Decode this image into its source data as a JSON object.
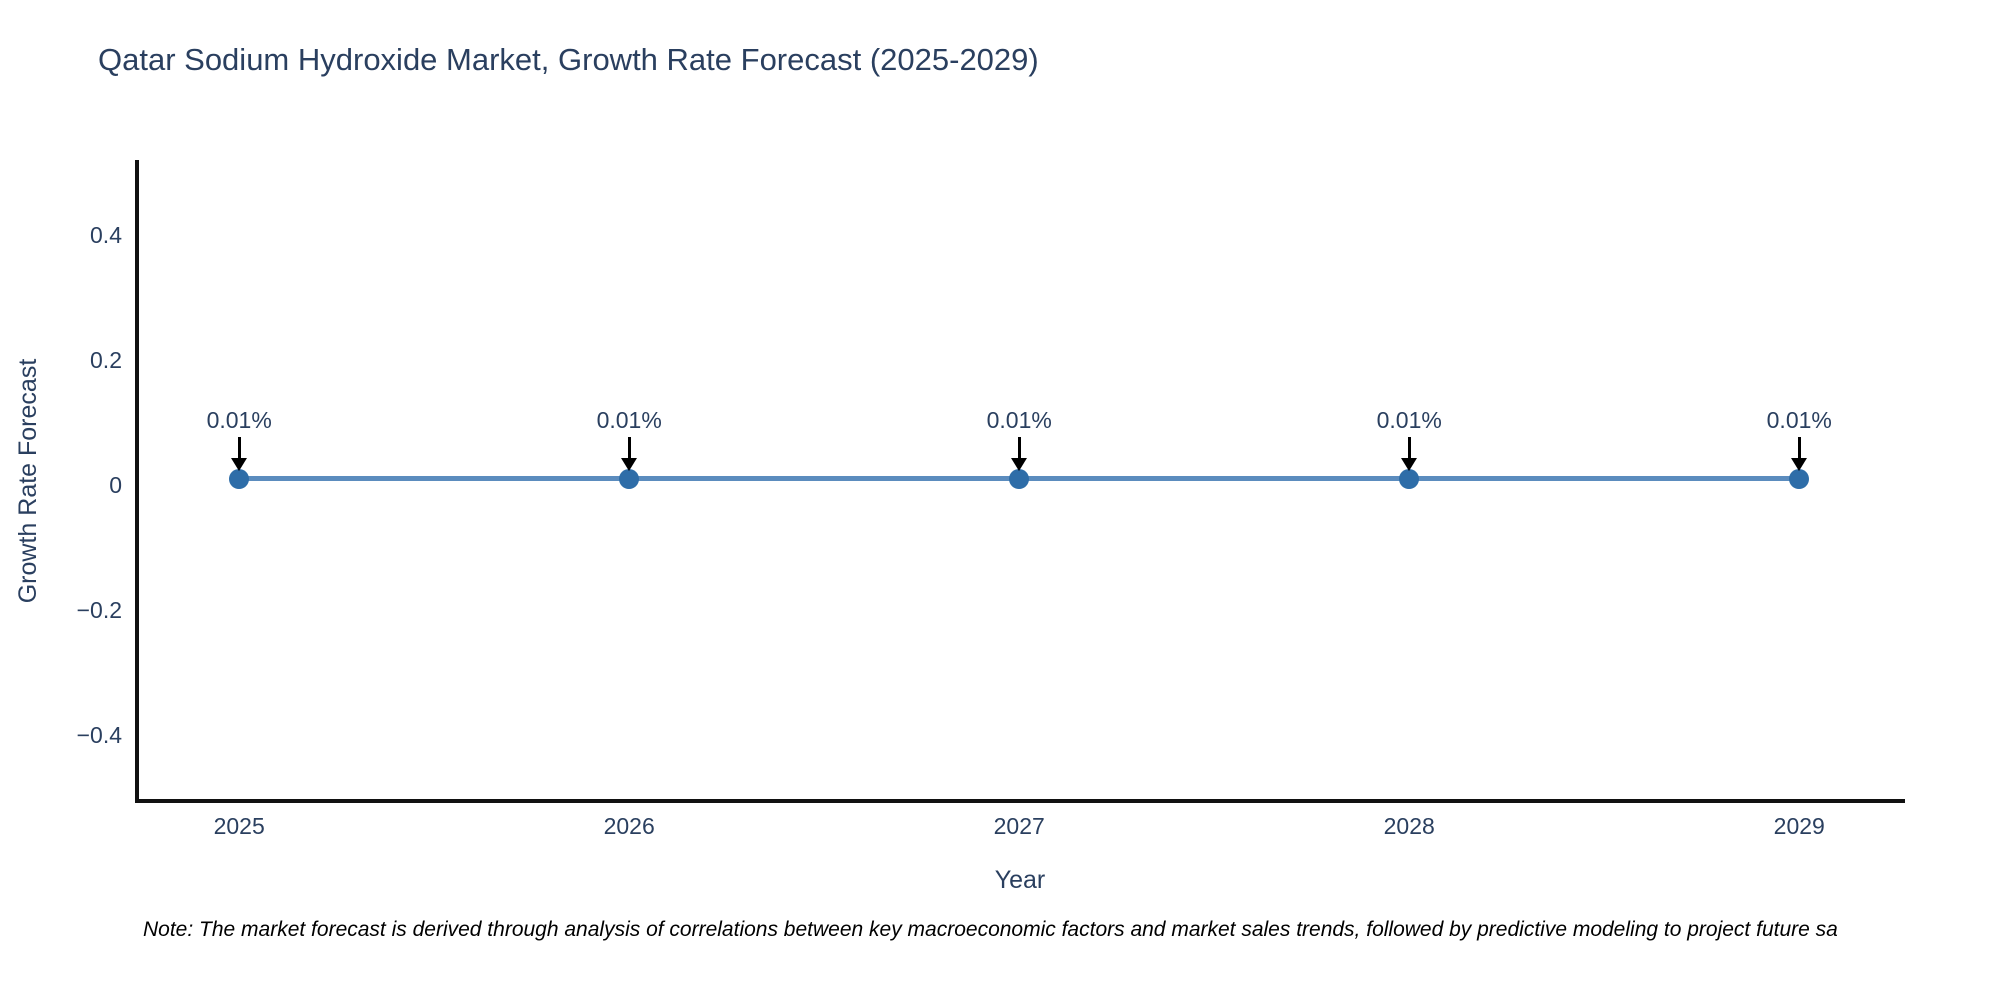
{
  "header": {
    "title": "Qatar Sodium Hydroxide Market, Growth Rate Forecast (2025-2029)"
  },
  "chart_data": {
    "type": "line",
    "title": "Qatar Sodium Hydroxide Market, Growth Rate Forecast (2025-2029)",
    "xlabel": "Year",
    "ylabel": "Growth Rate Forecast",
    "x": [
      2025,
      2026,
      2027,
      2028,
      2029
    ],
    "series": [
      {
        "name": "Growth Rate Forecast",
        "values": [
          0.01,
          0.01,
          0.01,
          0.01,
          0.01
        ]
      }
    ],
    "point_labels": [
      "0.01%",
      "0.01%",
      "0.01%",
      "0.01%",
      "0.01%"
    ],
    "xticks": [
      "2025",
      "2026",
      "2027",
      "2028",
      "2029"
    ],
    "ytick_values": [
      0.4,
      0.2,
      0,
      -0.2,
      -0.4
    ],
    "ytick_labels": [
      "0.4",
      "0.2",
      "0",
      "−0.2",
      "−0.4"
    ],
    "xlim": [
      2024.738,
      2029.266
    ],
    "ylim": [
      -0.506,
      0.52
    ],
    "grid": false,
    "legend": false
  },
  "footnote": {
    "text": "Note: The market forecast is derived through analysis of correlations between key macroeconomic factors and market sales trends, followed by predictive modeling to project future sa"
  },
  "colors": {
    "line": "#5b8cbe",
    "marker": "#2e6da8",
    "axis": "#111111",
    "text": "#2a3f5f",
    "arrow": "#000000",
    "footnote_text": "#000000",
    "background": "#ffffff"
  }
}
